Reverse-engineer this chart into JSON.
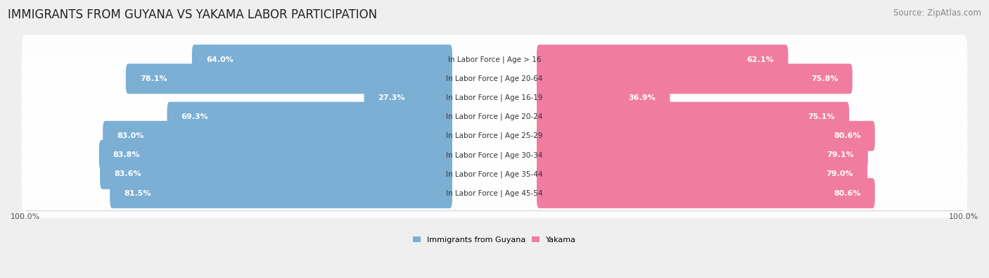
{
  "title": "IMMIGRANTS FROM GUYANA VS YAKAMA LABOR PARTICIPATION",
  "source": "Source: ZipAtlas.com",
  "categories": [
    "In Labor Force | Age > 16",
    "In Labor Force | Age 20-64",
    "In Labor Force | Age 16-19",
    "In Labor Force | Age 20-24",
    "In Labor Force | Age 25-29",
    "In Labor Force | Age 30-34",
    "In Labor Force | Age 35-44",
    "In Labor Force | Age 45-54"
  ],
  "guyana_values": [
    64.0,
    78.1,
    27.3,
    69.3,
    83.0,
    83.8,
    83.6,
    81.5
  ],
  "yakama_values": [
    62.1,
    75.8,
    36.9,
    75.1,
    80.6,
    79.1,
    79.0,
    80.6
  ],
  "guyana_color": "#7bafd4",
  "yakama_color": "#f07ca0",
  "background_color": "#efefef",
  "max_value": 100.0,
  "legend_label_guyana": "Immigrants from Guyana",
  "legend_label_yakama": "Yakama",
  "title_fontsize": 12,
  "source_fontsize": 8.5,
  "bar_label_fontsize": 8.0,
  "category_fontsize": 7.5,
  "axis_label_fontsize": 8
}
